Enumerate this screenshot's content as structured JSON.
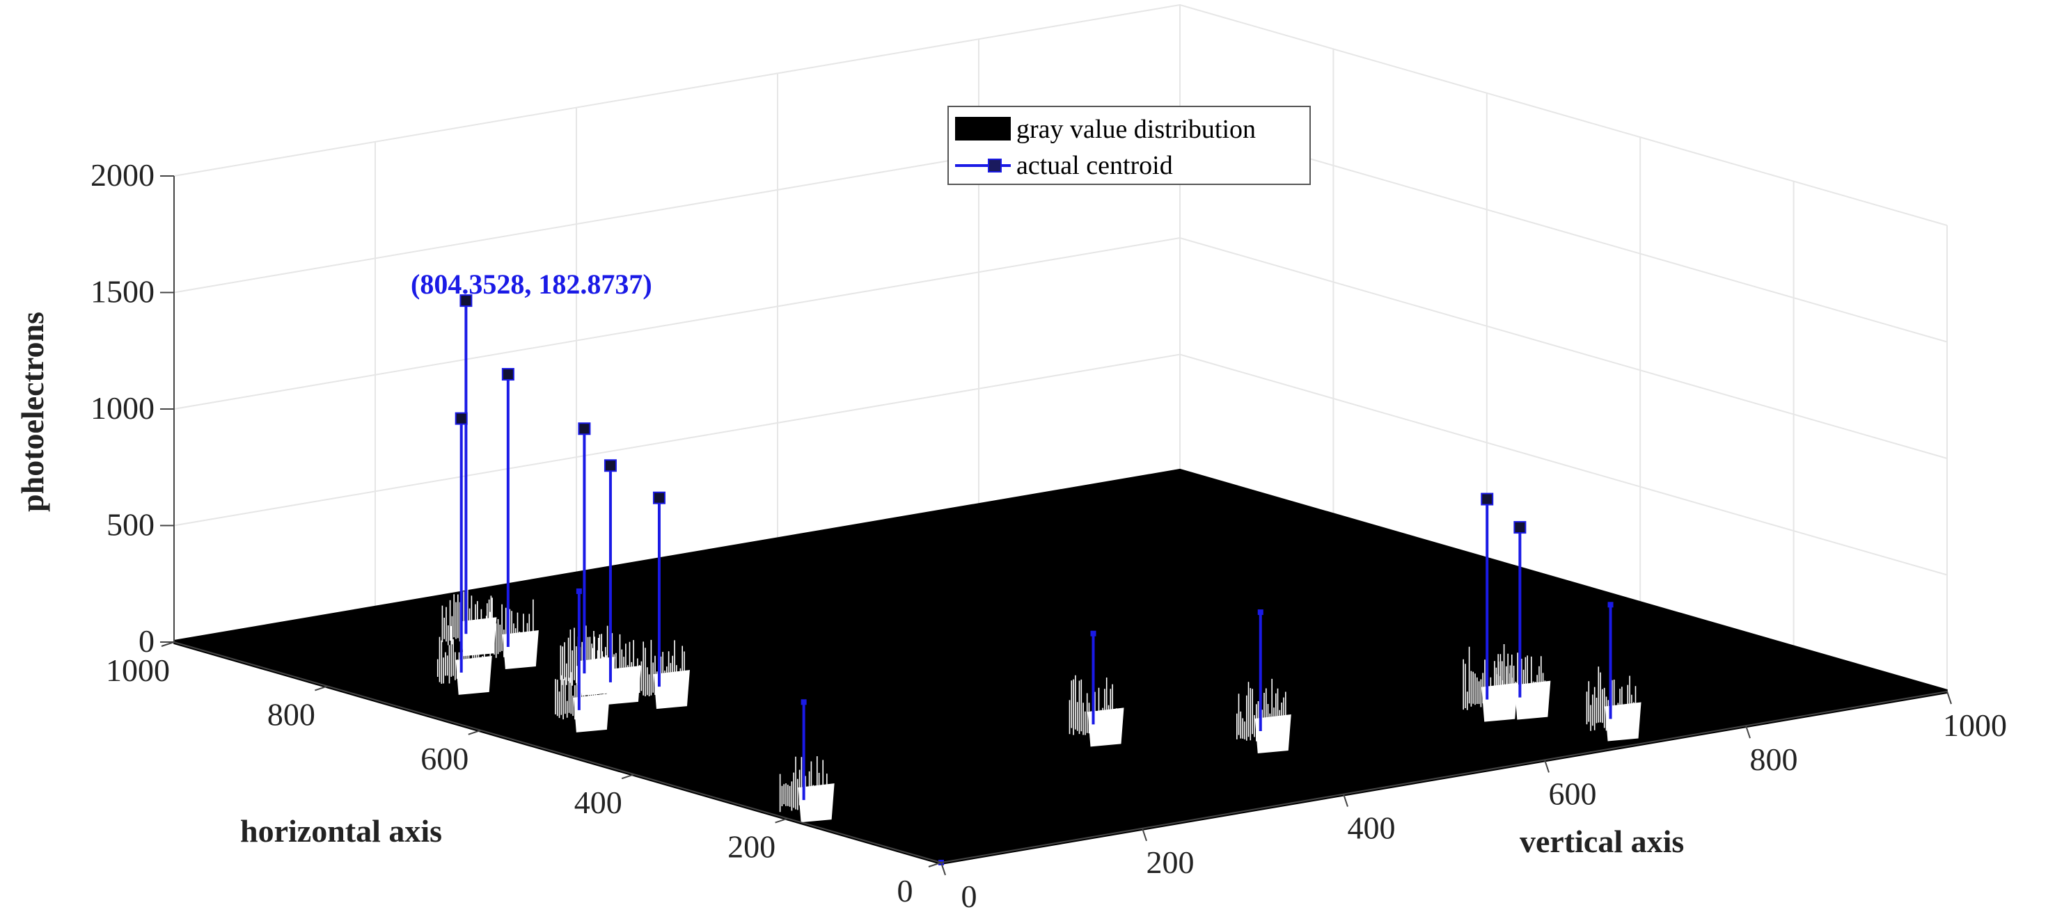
{
  "chart_data": {
    "type": "3d-surface-with-stems",
    "title": "",
    "xlabel": "vertical axis",
    "ylabel": "horizontal axis",
    "zlabel": "photoelectrons",
    "xlim": [
      0,
      1000
    ],
    "ylim": [
      0,
      1000
    ],
    "zlim": [
      0,
      2000
    ],
    "x_ticks": [
      0,
      200,
      400,
      600,
      800,
      1000
    ],
    "y_ticks": [
      0,
      200,
      400,
      600,
      800,
      1000
    ],
    "z_ticks": [
      0,
      500,
      1000,
      1500,
      2000
    ],
    "x_tick_labels": [
      "0",
      "200",
      "400",
      "600",
      "800",
      "1000"
    ],
    "y_tick_labels": [
      "0",
      "200",
      "400",
      "600",
      "800",
      "1000"
    ],
    "z_tick_labels": [
      "0",
      "500",
      "1000",
      "1500",
      "2000"
    ],
    "grid": true,
    "legend": {
      "position": "top-center",
      "entries": [
        {
          "label": "gray value distribution",
          "style": "black-patch"
        },
        {
          "label": "actual centroid",
          "style": "blue-line-square-marker"
        }
      ]
    },
    "series": [
      {
        "name": "actual centroid",
        "color": "#1a1ae6",
        "points": [
          {
            "x": 185,
            "y": 862,
            "z": 1460
          },
          {
            "x": 182.8737,
            "y": 804.3528,
            "z": 1200
          },
          {
            "x": 98,
            "y": 754,
            "z": 1120
          },
          {
            "x": 173,
            "y": 692,
            "z": 1080
          },
          {
            "x": 170,
            "y": 654,
            "z": 960
          },
          {
            "x": 191,
            "y": 618,
            "z": 840
          },
          {
            "x": 90,
            "y": 590,
            "z": 540
          },
          {
            "x": 35,
            "y": 225,
            "z": 450
          },
          {
            "x": 380,
            "y": 300,
            "z": 420
          },
          {
            "x": 470,
            "y": 200,
            "z": 540
          },
          {
            "x": 680,
            "y": 180,
            "z": 890
          },
          {
            "x": 705,
            "y": 170,
            "z": 760
          },
          {
            "x": 715,
            "y": 65,
            "z": 520
          },
          {
            "x": 0,
            "y": 0,
            "z": 0
          }
        ]
      }
    ],
    "annotations": [
      {
        "text": "(804.3528, 182.8737)",
        "color": "#1a1ae6",
        "target_point": 1
      }
    ]
  }
}
